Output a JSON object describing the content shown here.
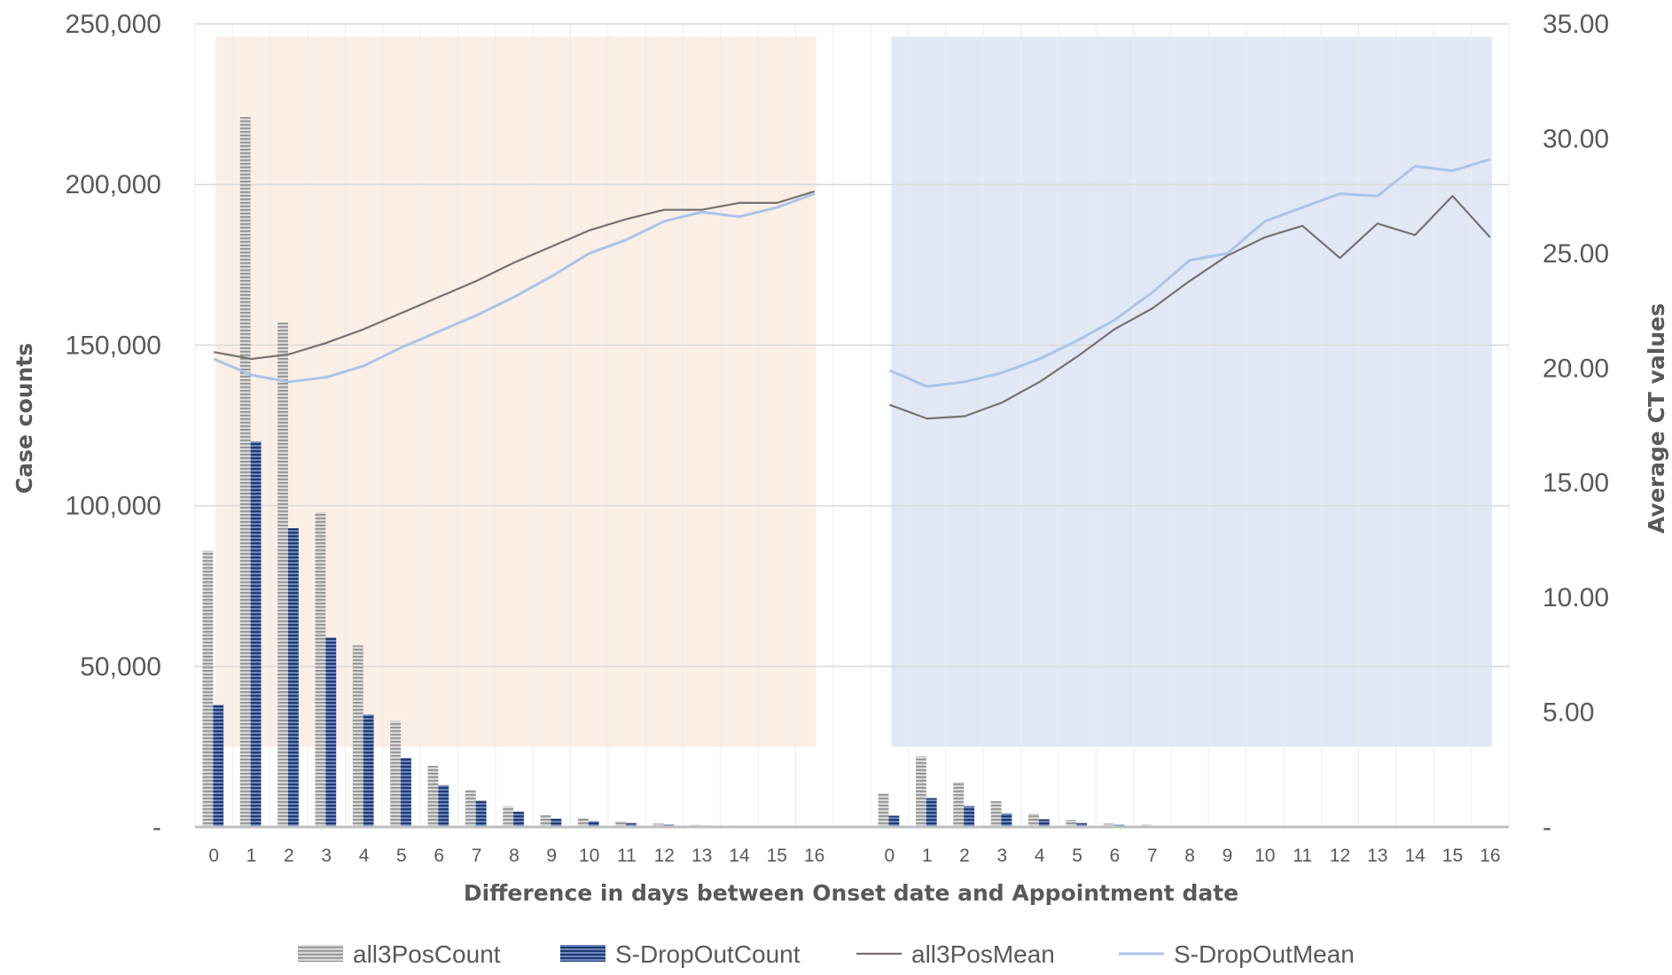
{
  "colors": {
    "grid": "#d9d9d9",
    "axis": "#bfbfbf",
    "text": "#595959",
    "left_region": "#fbeee5",
    "right_region": "#e1e7f4",
    "all3PosCount": "#a6a6a6",
    "S-DropOutCount": "#2f4b85",
    "all3PosMean": "#767171",
    "S-DropOutMean": "#a9c4e8"
  },
  "chart_data": {
    "type": "bar",
    "xlabel": "Difference in days between Onset date and Appointment date",
    "ylabel_left": "Case counts",
    "ylabel_right": "Average CT values",
    "ylim_left": [
      0,
      250000
    ],
    "ylim_right": [
      0,
      35
    ],
    "y_ticks_left": [
      "-",
      "50,000",
      "100,000",
      "150,000",
      "200,000",
      "250,000"
    ],
    "y_ticks_right": [
      "-",
      "5.00",
      "10.00",
      "15.00",
      "20.00",
      "25.00",
      "30.00",
      "35.00"
    ],
    "grid": true,
    "legend_position": "bottom",
    "groups": [
      {
        "categories": [
          "0",
          "1",
          "2",
          "3",
          "4",
          "5",
          "6",
          "7",
          "8",
          "9",
          "10",
          "11",
          "12",
          "13",
          "14",
          "15",
          "16"
        ],
        "series": [
          {
            "name": "all3PosCount",
            "kind": "bar",
            "axis": "left",
            "values": [
              86000,
              221000,
              157000,
              98000,
              56500,
              33000,
              19000,
              11500,
              6500,
              3700,
              2800,
              1800,
              1100,
              700,
              450,
              300,
              200
            ]
          },
          {
            "name": "S-DropOutCount",
            "kind": "bar",
            "axis": "left",
            "values": [
              38000,
              120000,
              93000,
              59000,
              35000,
              21500,
              13000,
              8200,
              4800,
              2600,
              1800,
              1200,
              750,
              450,
              300,
              180,
              120
            ]
          },
          {
            "name": "all3PosMean",
            "kind": "line",
            "axis": "right",
            "values": [
              20.7,
              20.4,
              20.6,
              21.1,
              21.7,
              22.4,
              23.1,
              23.8,
              24.6,
              25.3,
              26.0,
              26.5,
              26.9,
              26.9,
              27.2,
              27.2,
              27.7
            ]
          },
          {
            "name": "S-DropOutMean",
            "kind": "line",
            "axis": "right",
            "values": [
              20.4,
              19.7,
              19.4,
              19.6,
              20.1,
              20.9,
              21.6,
              22.3,
              23.1,
              24.0,
              25.0,
              25.6,
              26.4,
              26.8,
              26.6,
              27.0,
              27.6
            ]
          }
        ]
      },
      {
        "categories": [
          "0",
          "1",
          "2",
          "3",
          "4",
          "5",
          "6",
          "7",
          "8",
          "9",
          "10",
          "11",
          "12",
          "13",
          "14",
          "15",
          "16"
        ],
        "series": [
          {
            "name": "all3PosCount",
            "kind": "bar",
            "axis": "left",
            "values": [
              10500,
              22000,
              14000,
              8000,
              4200,
              2200,
              1100,
              800,
              300,
              150,
              100,
              80,
              60,
              40,
              30,
              20,
              10
            ]
          },
          {
            "name": "S-DropOutCount",
            "kind": "bar",
            "axis": "left",
            "values": [
              3500,
              9000,
              6500,
              4200,
              2400,
              1200,
              700,
              400,
              200,
              100,
              60,
              40,
              30,
              20,
              15,
              10,
              5
            ]
          },
          {
            "name": "all3PosMean",
            "kind": "line",
            "axis": "right",
            "values": [
              18.4,
              17.8,
              17.9,
              18.5,
              19.4,
              20.5,
              21.7,
              22.6,
              23.8,
              24.9,
              25.7,
              26.2,
              24.8,
              26.3,
              25.8,
              27.5,
              25.7
            ]
          },
          {
            "name": "S-DropOutMean",
            "kind": "line",
            "axis": "right",
            "values": [
              19.9,
              19.2,
              19.4,
              19.8,
              20.4,
              21.2,
              22.1,
              23.3,
              24.7,
              25.0,
              26.4,
              27.0,
              27.6,
              27.5,
              28.8,
              28.6,
              29.1
            ]
          }
        ]
      }
    ],
    "legend": [
      {
        "name": "all3PosCount",
        "kind": "bar"
      },
      {
        "name": "S-DropOutCount",
        "kind": "bar"
      },
      {
        "name": "all3PosMean",
        "kind": "line"
      },
      {
        "name": "S-DropOutMean",
        "kind": "line"
      }
    ]
  }
}
